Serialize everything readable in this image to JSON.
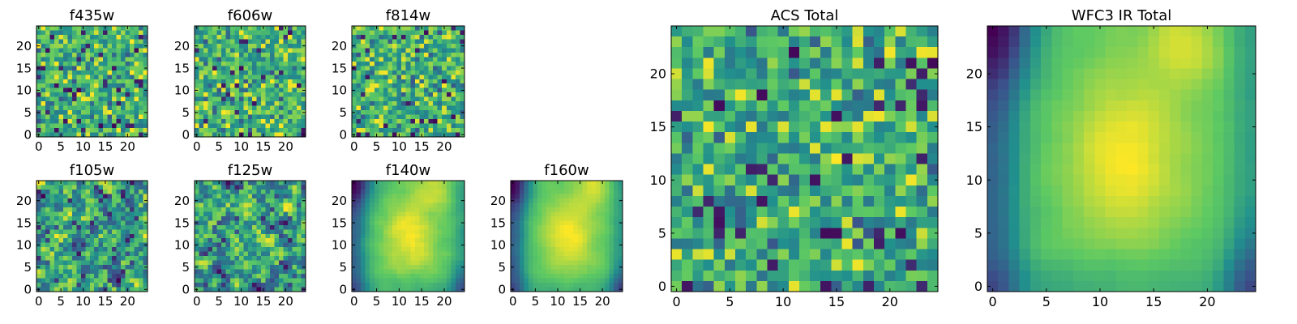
{
  "colormap": {
    "name": "viridis",
    "stops": [
      "#440154",
      "#3b528b",
      "#21908d",
      "#5dc963",
      "#fde725"
    ]
  },
  "chart_data": [
    {
      "id": "f435w",
      "type": "heatmap",
      "title": "f435w",
      "grid_size": 25,
      "pattern": "noise",
      "base": 0.64,
      "spread": 0.22,
      "xlim": [
        0,
        24
      ],
      "ylim": [
        0,
        24
      ],
      "xticks": [
        "0",
        "5",
        "10",
        "15",
        "20"
      ],
      "yticks": [
        "0",
        "5",
        "10",
        "15",
        "20"
      ]
    },
    {
      "id": "f606w",
      "type": "heatmap",
      "title": "f606w",
      "grid_size": 25,
      "pattern": "noise",
      "base": 0.64,
      "spread": 0.22,
      "xlim": [
        0,
        24
      ],
      "ylim": [
        0,
        24
      ],
      "xticks": [
        "0",
        "5",
        "10",
        "15",
        "20"
      ],
      "yticks": [
        "0",
        "5",
        "10",
        "15",
        "20"
      ]
    },
    {
      "id": "f814w",
      "type": "heatmap",
      "title": "f814w",
      "grid_size": 25,
      "pattern": "noise",
      "base": 0.64,
      "spread": 0.22,
      "xlim": [
        0,
        24
      ],
      "ylim": [
        0,
        24
      ],
      "xticks": [
        "0",
        "5",
        "10",
        "15",
        "20"
      ],
      "yticks": [
        "0",
        "5",
        "10",
        "15",
        "20"
      ]
    },
    {
      "id": "f105w",
      "type": "heatmap",
      "title": "f105w",
      "grid_size": 25,
      "pattern": "noise-smooth",
      "base": 0.6,
      "spread": 0.2,
      "xlim": [
        0,
        24
      ],
      "ylim": [
        0,
        24
      ],
      "xticks": [
        "0",
        "5",
        "10",
        "15",
        "20"
      ],
      "yticks": [
        "0",
        "5",
        "10",
        "15",
        "20"
      ]
    },
    {
      "id": "f125w",
      "type": "heatmap",
      "title": "f125w",
      "grid_size": 25,
      "pattern": "noise-smooth",
      "base": 0.6,
      "spread": 0.22,
      "xlim": [
        0,
        24
      ],
      "ylim": [
        0,
        24
      ],
      "xticks": [
        "0",
        "5",
        "10",
        "15",
        "20"
      ],
      "yticks": [
        "0",
        "5",
        "10",
        "15",
        "20"
      ]
    },
    {
      "id": "f140w",
      "type": "heatmap",
      "title": "f140w",
      "grid_size": 25,
      "pattern": "structured",
      "base": 0.62,
      "spread": 0.12,
      "xlim": [
        0,
        24
      ],
      "ylim": [
        0,
        24
      ],
      "xticks": [
        "0",
        "5",
        "10",
        "15",
        "20"
      ],
      "yticks": [
        "0",
        "5",
        "10",
        "15",
        "20"
      ]
    },
    {
      "id": "f160w",
      "type": "heatmap",
      "title": "f160w",
      "grid_size": 25,
      "pattern": "structured",
      "base": 0.6,
      "spread": 0.08,
      "xlim": [
        0,
        24
      ],
      "ylim": [
        0,
        24
      ],
      "xticks": [
        "0",
        "5",
        "10",
        "15",
        "20"
      ],
      "yticks": [
        "0",
        "5",
        "10",
        "15",
        "20"
      ]
    },
    {
      "id": "acs_total",
      "type": "heatmap",
      "title": "ACS Total",
      "grid_size": 25,
      "pattern": "noise",
      "base": 0.62,
      "spread": 0.22,
      "xlim": [
        0,
        24
      ],
      "ylim": [
        0,
        24
      ],
      "xticks": [
        "0",
        "5",
        "10",
        "15",
        "20"
      ],
      "yticks": [
        "0",
        "5",
        "10",
        "15",
        "20"
      ]
    },
    {
      "id": "wfc3_ir_total",
      "type": "heatmap",
      "title": "WFC3 IR Total",
      "grid_size": 25,
      "pattern": "structured",
      "base": 0.6,
      "spread": 0.06,
      "xlim": [
        0,
        24
      ],
      "ylim": [
        0,
        24
      ],
      "xticks": [
        "0",
        "5",
        "10",
        "15",
        "20"
      ],
      "yticks": [
        "0",
        "5",
        "10",
        "15",
        "20"
      ]
    }
  ]
}
